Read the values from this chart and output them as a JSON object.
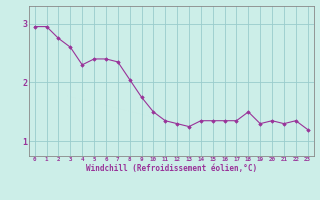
{
  "x": [
    0,
    1,
    2,
    3,
    4,
    5,
    6,
    7,
    8,
    9,
    10,
    11,
    12,
    13,
    14,
    15,
    16,
    17,
    18,
    19,
    20,
    21,
    22,
    23
  ],
  "y": [
    2.95,
    2.95,
    2.75,
    2.6,
    2.3,
    2.4,
    2.4,
    2.35,
    2.05,
    1.75,
    1.5,
    1.35,
    1.3,
    1.25,
    1.35,
    1.35,
    1.35,
    1.35,
    1.5,
    1.3,
    1.35,
    1.3,
    1.35,
    1.2
  ],
  "line_color": "#993399",
  "marker_color": "#993399",
  "bg_color": "#cceee8",
  "grid_color": "#99cccc",
  "axis_color": "#888888",
  "xlabel": "Windchill (Refroidissement éolien,°C)",
  "xlabel_color": "#993399",
  "tick_color": "#993399",
  "yticks": [
    1,
    2,
    3
  ],
  "ylim": [
    0.75,
    3.3
  ],
  "xlim": [
    -0.5,
    23.5
  ],
  "figsize": [
    3.2,
    2.0
  ],
  "dpi": 100
}
